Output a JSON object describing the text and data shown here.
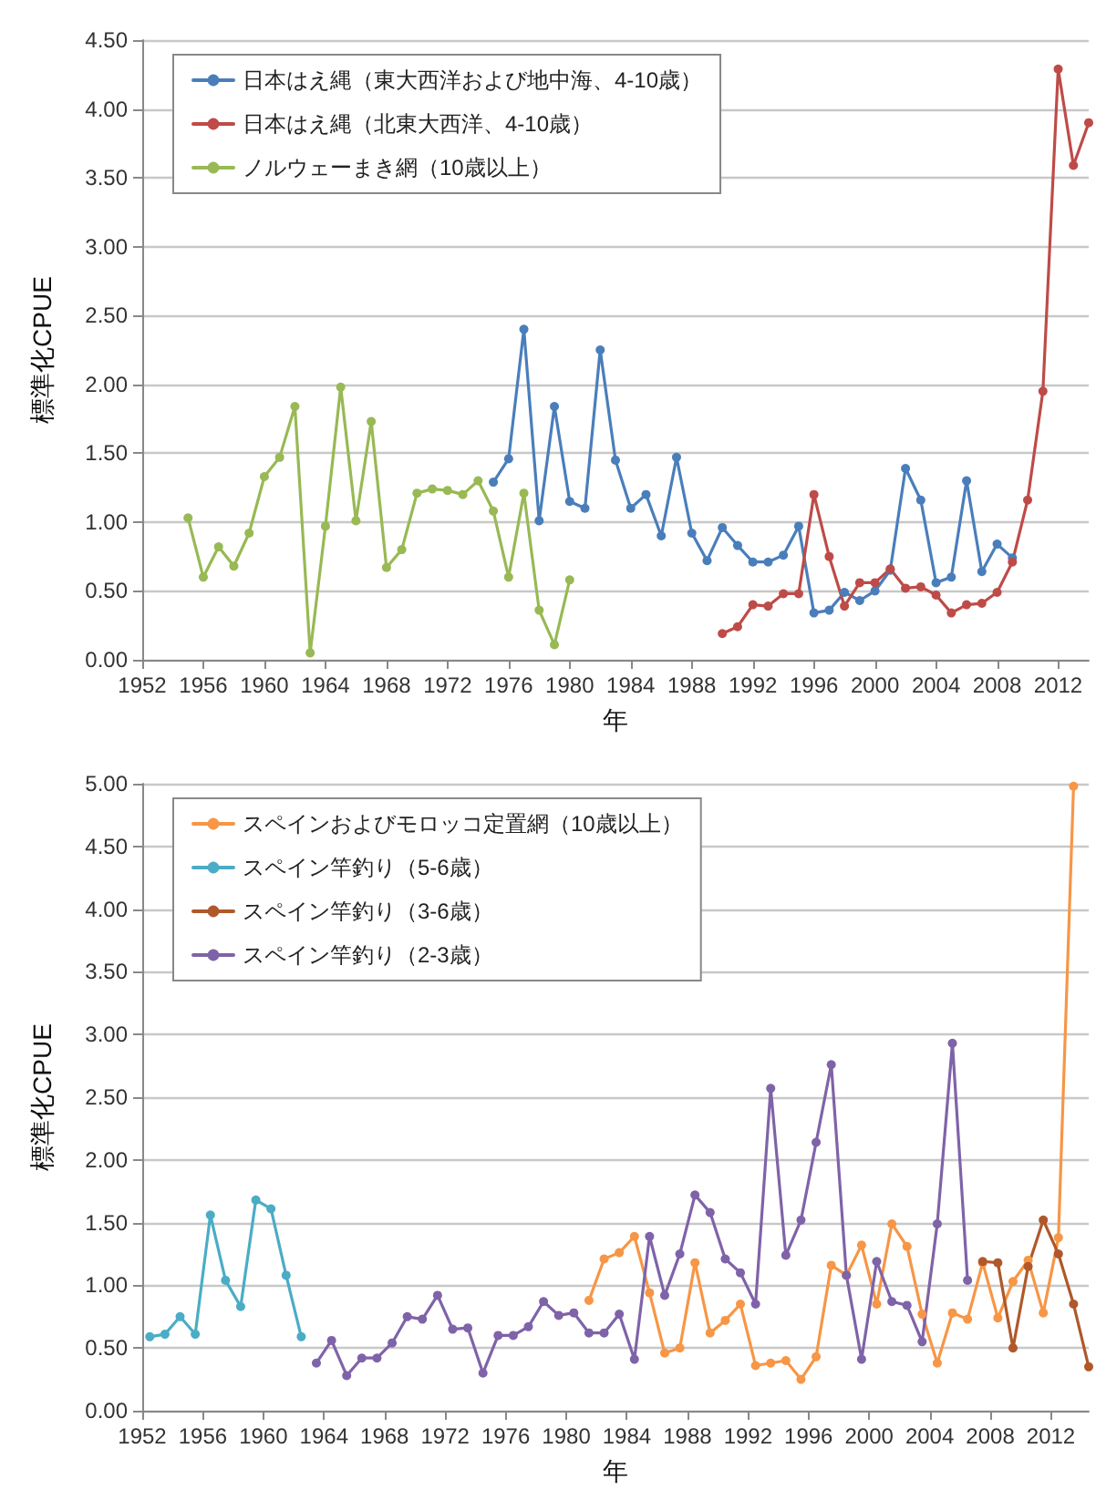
{
  "chart_data": [
    {
      "type": "line",
      "xlabel": "年",
      "ylabel": "標準化CPUE",
      "legend": "top left",
      "grid": "y",
      "marker": "circle",
      "line_style": "solid",
      "xlim": [
        1952,
        2014
      ],
      "xticks": [
        1952,
        1956,
        1960,
        1964,
        1968,
        1972,
        1976,
        1980,
        1984,
        1988,
        1992,
        1996,
        2000,
        2004,
        2008,
        2012
      ],
      "ylim": [
        0,
        4.5
      ],
      "yticks": [
        {
          "value": 0,
          "label": "0.00"
        },
        {
          "value": 0.5,
          "label": "0.50"
        },
        {
          "value": 1,
          "label": "1.00"
        },
        {
          "value": 1.5,
          "label": "1.50"
        },
        {
          "value": 2,
          "label": "2.00"
        },
        {
          "value": 2.5,
          "label": "2.50"
        },
        {
          "value": 3,
          "label": "3.00"
        },
        {
          "value": 3.5,
          "label": "3.50"
        },
        {
          "value": 4,
          "label": "4.00"
        },
        {
          "value": 4.5,
          "label": "4.50"
        }
      ],
      "series": [
        {
          "name": "日本はえ縄（東大西洋および地中海、4-10歳）",
          "color": "#4a7ebb",
          "x": [
            1975,
            1976,
            1977,
            1978,
            1979,
            1980,
            1981,
            1982,
            1983,
            1984,
            1985,
            1986,
            1987,
            1988,
            1989,
            1990,
            1991,
            1992,
            1993,
            1994,
            1995,
            1996,
            1997,
            1998,
            1999,
            2000,
            2001,
            2002,
            2003,
            2004,
            2005,
            2006,
            2007,
            2008,
            2009
          ],
          "values": [
            1.29,
            1.46,
            2.4,
            1.01,
            1.84,
            1.15,
            1.1,
            2.25,
            1.45,
            1.1,
            1.2,
            0.9,
            1.47,
            0.92,
            0.72,
            0.96,
            0.83,
            0.71,
            0.71,
            0.76,
            0.97,
            0.34,
            0.36,
            0.49,
            0.43,
            0.5,
            0.65,
            1.39,
            1.16,
            0.56,
            0.6,
            1.3,
            0.64,
            0.84,
            0.74
          ]
        },
        {
          "name": "日本はえ縄（北東大西洋、4-10歳）",
          "color": "#be4b48",
          "x": [
            1990,
            1991,
            1992,
            1993,
            1994,
            1995,
            1996,
            1997,
            1998,
            1999,
            2000,
            2001,
            2002,
            2003,
            2004,
            2005,
            2006,
            2007,
            2008,
            2009,
            2010,
            2011,
            2012,
            2013,
            2014
          ],
          "values": [
            0.19,
            0.24,
            0.4,
            0.39,
            0.48,
            0.48,
            1.2,
            0.75,
            0.39,
            0.56,
            0.56,
            0.66,
            0.52,
            0.53,
            0.47,
            0.34,
            0.4,
            0.41,
            0.49,
            0.71,
            1.16,
            1.95,
            4.29,
            3.59,
            3.9
          ]
        },
        {
          "name": "ノルウェーまき網（10歳以上）",
          "color": "#98b954",
          "x": [
            1955,
            1956,
            1957,
            1958,
            1959,
            1960,
            1961,
            1962,
            1963,
            1964,
            1965,
            1966,
            1967,
            1968,
            1969,
            1970,
            1971,
            1972,
            1973,
            1974,
            1975,
            1976,
            1977,
            1978,
            1979,
            1980
          ],
          "values": [
            1.03,
            0.6,
            0.82,
            0.68,
            0.92,
            1.33,
            1.47,
            1.84,
            0.05,
            0.97,
            1.98,
            1.01,
            1.73,
            0.67,
            0.8,
            1.21,
            1.24,
            1.23,
            1.2,
            1.3,
            1.08,
            0.6,
            1.21,
            0.36,
            0.11,
            0.58
          ]
        }
      ]
    },
    {
      "type": "line",
      "xlabel": "年",
      "ylabel": "標準化CPUE",
      "legend": "top left",
      "grid": "y",
      "marker": "circle",
      "line_style": "solid",
      "xlim": [
        1952,
        2014.5
      ],
      "xticks": [
        1952,
        1956,
        1960,
        1964,
        1968,
        1972,
        1976,
        1980,
        1984,
        1988,
        1992,
        1996,
        2000,
        2004,
        2008,
        2012
      ],
      "ylim": [
        0,
        5
      ],
      "yticks": [
        {
          "value": 0,
          "label": "0.00"
        },
        {
          "value": 0.5,
          "label": "0.50"
        },
        {
          "value": 1,
          "label": "1.00"
        },
        {
          "value": 1.5,
          "label": "1.50"
        },
        {
          "value": 2,
          "label": "2.00"
        },
        {
          "value": 2.5,
          "label": "2.50"
        },
        {
          "value": 3,
          "label": "3.00"
        },
        {
          "value": 3.5,
          "label": "3.50"
        },
        {
          "value": 4,
          "label": "4.00"
        },
        {
          "value": 4.5,
          "label": "4.50"
        },
        {
          "value": 5,
          "label": "5.00"
        }
      ],
      "series": [
        {
          "name": "スペインおよびモロッコ定置網（10歳以上）",
          "color": "#f79646",
          "x": [
            1981.5,
            1982.5,
            1983.5,
            1984.5,
            1985.5,
            1986.5,
            1987.5,
            1988.5,
            1989.5,
            1990.5,
            1991.5,
            1992.5,
            1993.5,
            1994.5,
            1995.5,
            1996.5,
            1997.5,
            1998.5,
            1999.5,
            2000.5,
            2001.5,
            2002.5,
            2003.5,
            2004.5,
            2005.5,
            2006.5,
            2007.5,
            2008.5,
            2009.5,
            2010.5,
            2011.5,
            2012.5,
            2013.5
          ],
          "values": [
            0.88,
            1.21,
            1.26,
            1.39,
            0.94,
            0.46,
            0.5,
            1.18,
            0.62,
            0.72,
            0.85,
            0.36,
            0.38,
            0.4,
            0.25,
            0.43,
            1.16,
            1.08,
            1.32,
            0.85,
            1.49,
            1.31,
            0.77,
            0.38,
            0.78,
            0.73,
            1.18,
            0.74,
            1.03,
            1.2,
            0.78,
            1.38,
            4.98
          ]
        },
        {
          "name": "スペイン竿釣り（5-6歳）",
          "color": "#4bacc6",
          "x": [
            1952.5,
            1953.5,
            1954.5,
            1955.5,
            1956.5,
            1957.5,
            1958.5,
            1959.5,
            1960.5,
            1961.5,
            1962.5
          ],
          "values": [
            0.59,
            0.61,
            0.75,
            0.61,
            1.56,
            1.04,
            0.83,
            1.68,
            1.61,
            1.08,
            0.59
          ]
        },
        {
          "name": "スペイン竿釣り（3-6歳）",
          "color": "#b0582a",
          "x": [
            2007.5,
            2008.5,
            2009.5,
            2010.5,
            2011.5,
            2012.5,
            2013.5,
            2014.5
          ],
          "values": [
            1.19,
            1.18,
            0.5,
            1.15,
            1.52,
            1.25,
            0.85,
            0.35
          ]
        },
        {
          "name": "スペイン竿釣り（2-3歳）",
          "color": "#7f63a8",
          "x": [
            1963.5,
            1964.5,
            1965.5,
            1966.5,
            1967.5,
            1968.5,
            1969.5,
            1970.5,
            1971.5,
            1972.5,
            1973.5,
            1974.5,
            1975.5,
            1976.5,
            1977.5,
            1978.5,
            1979.5,
            1980.5,
            1981.5,
            1982.5,
            1983.5,
            1984.5,
            1985.5,
            1986.5,
            1987.5,
            1988.5,
            1989.5,
            1990.5,
            1991.5,
            1992.5,
            1993.5,
            1994.5,
            1995.5,
            1996.5,
            1997.5,
            1998.5,
            1999.5,
            2000.5,
            2001.5,
            2002.5,
            2003.5,
            2004.5,
            2005.5,
            2006.5
          ],
          "values": [
            0.38,
            0.56,
            0.28,
            0.42,
            0.42,
            0.54,
            0.75,
            0.73,
            0.92,
            0.65,
            0.66,
            0.3,
            0.6,
            0.6,
            0.67,
            0.87,
            0.76,
            0.78,
            0.62,
            0.62,
            0.77,
            0.41,
            1.39,
            0.92,
            1.25,
            1.72,
            1.58,
            1.21,
            1.1,
            0.85,
            2.57,
            1.24,
            1.52,
            2.14,
            2.76,
            1.08,
            0.41,
            1.19,
            0.87,
            0.84,
            0.55,
            1.49,
            2.93,
            1.04
          ]
        }
      ]
    }
  ]
}
